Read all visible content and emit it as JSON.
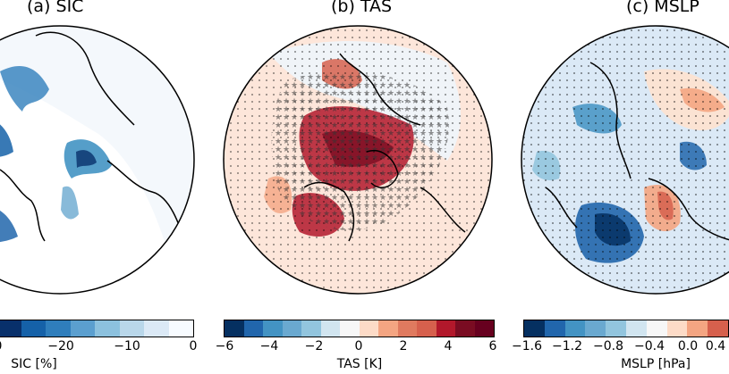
{
  "panels": [
    {
      "title": "(a) SIC",
      "cb_label": "SIC [%]",
      "ticks": [
        "0",
        "−20",
        "−10",
        "0"
      ],
      "colors": [
        "#08306b",
        "#1561a8",
        "#2f7ebc",
        "#5b9fcf",
        "#8cc1de",
        "#b9d7ea",
        "#dbe9f6",
        "#f7fbff"
      ]
    },
    {
      "title": "(b) TAS",
      "cb_label": "TAS [K]",
      "ticks": [
        "−6",
        "−4",
        "−2",
        "0",
        "2",
        "4",
        "6"
      ],
      "colors": [
        "#053061",
        "#2166ac",
        "#4393c3",
        "#6aa9d0",
        "#92c5de",
        "#d1e5f0",
        "#f7f7f7",
        "#fddbc7",
        "#f4a582",
        "#e07a5f",
        "#d6604d",
        "#b2182b",
        "#7a0c22",
        "#67001f"
      ]
    },
    {
      "title": "(c) MSLP",
      "cb_label": "MSLP [hPa]",
      "ticks": [
        "−1.6",
        "−1.2",
        "−0.8",
        "−0.4",
        "0.0",
        "0.4"
      ],
      "colors": [
        "#053061",
        "#2166ac",
        "#4393c3",
        "#6aa9d0",
        "#92c5de",
        "#d1e5f0",
        "#f7f7f7",
        "#fddbc7",
        "#f4a582",
        "#d6604d"
      ]
    }
  ]
}
